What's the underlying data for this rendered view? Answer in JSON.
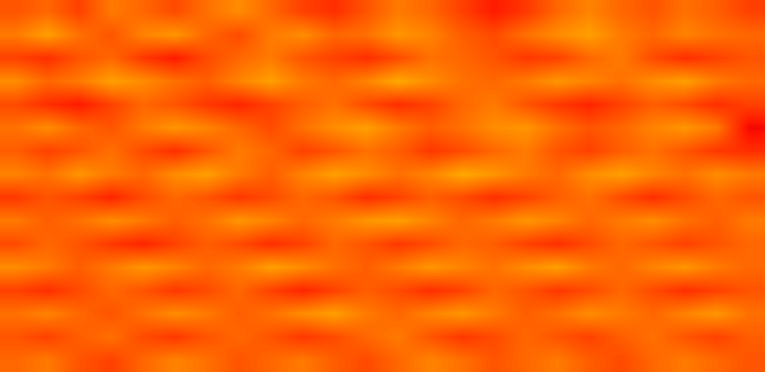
{
  "chart_data": {
    "type": "heatmap",
    "color": "jet",
    "tick_labels": false,
    "cell_range": [
      0,
      1
    ],
    "cells": [
      [
        0.82,
        0.8,
        0.84,
        0.78,
        0.8,
        0.83,
        0.79,
        0.76,
        0.8,
        0.84,
        0.86,
        0.82,
        0.78,
        0.8,
        0.84,
        0.88,
        0.85,
        0.8,
        0.77,
        0.8,
        0.82,
        0.79,
        0.81,
        0.84
      ],
      [
        0.78,
        0.74,
        0.79,
        0.82,
        0.77,
        0.75,
        0.8,
        0.83,
        0.78,
        0.76,
        0.8,
        0.79,
        0.75,
        0.77,
        0.81,
        0.83,
        0.79,
        0.76,
        0.74,
        0.78,
        0.8,
        0.77,
        0.79,
        0.8
      ],
      [
        0.84,
        0.86,
        0.82,
        0.8,
        0.85,
        0.88,
        0.83,
        0.8,
        0.78,
        0.82,
        0.84,
        0.86,
        0.83,
        0.79,
        0.8,
        0.82,
        0.85,
        0.84,
        0.8,
        0.78,
        0.83,
        0.86,
        0.84,
        0.82
      ],
      [
        0.76,
        0.8,
        0.78,
        0.74,
        0.76,
        0.79,
        0.81,
        0.77,
        0.74,
        0.78,
        0.8,
        0.77,
        0.73,
        0.76,
        0.79,
        0.8,
        0.78,
        0.75,
        0.77,
        0.79,
        0.76,
        0.74,
        0.78,
        0.8
      ],
      [
        0.83,
        0.86,
        0.88,
        0.84,
        0.8,
        0.82,
        0.85,
        0.87,
        0.84,
        0.81,
        0.79,
        0.83,
        0.86,
        0.84,
        0.8,
        0.78,
        0.82,
        0.85,
        0.87,
        0.84,
        0.81,
        0.83,
        0.86,
        0.84
      ],
      [
        0.79,
        0.76,
        0.8,
        0.82,
        0.78,
        0.75,
        0.77,
        0.8,
        0.83,
        0.79,
        0.76,
        0.74,
        0.78,
        0.81,
        0.79,
        0.76,
        0.75,
        0.79,
        0.82,
        0.8,
        0.77,
        0.75,
        0.78,
        0.9
      ],
      [
        0.81,
        0.84,
        0.82,
        0.79,
        0.83,
        0.86,
        0.82,
        0.78,
        0.8,
        0.84,
        0.82,
        0.79,
        0.81,
        0.85,
        0.83,
        0.8,
        0.78,
        0.82,
        0.84,
        0.81,
        0.79,
        0.82,
        0.85,
        0.86
      ],
      [
        0.77,
        0.79,
        0.75,
        0.78,
        0.8,
        0.76,
        0.74,
        0.78,
        0.81,
        0.77,
        0.74,
        0.76,
        0.79,
        0.77,
        0.73,
        0.75,
        0.78,
        0.8,
        0.76,
        0.74,
        0.77,
        0.79,
        0.76,
        0.78
      ],
      [
        0.85,
        0.82,
        0.84,
        0.87,
        0.83,
        0.8,
        0.82,
        0.85,
        0.83,
        0.8,
        0.82,
        0.86,
        0.84,
        0.81,
        0.83,
        0.86,
        0.84,
        0.81,
        0.79,
        0.83,
        0.86,
        0.83,
        0.8,
        0.82
      ],
      [
        0.78,
        0.81,
        0.79,
        0.76,
        0.78,
        0.81,
        0.79,
        0.75,
        0.77,
        0.8,
        0.78,
        0.75,
        0.74,
        0.77,
        0.8,
        0.78,
        0.75,
        0.77,
        0.8,
        0.78,
        0.76,
        0.79,
        0.81,
        0.78
      ],
      [
        0.83,
        0.8,
        0.82,
        0.85,
        0.87,
        0.84,
        0.81,
        0.83,
        0.86,
        0.84,
        0.8,
        0.82,
        0.85,
        0.83,
        0.8,
        0.81,
        0.84,
        0.86,
        0.83,
        0.8,
        0.82,
        0.84,
        0.82,
        0.8
      ],
      [
        0.76,
        0.78,
        0.81,
        0.78,
        0.75,
        0.77,
        0.8,
        0.78,
        0.74,
        0.76,
        0.79,
        0.81,
        0.78,
        0.75,
        0.77,
        0.79,
        0.76,
        0.74,
        0.78,
        0.8,
        0.77,
        0.75,
        0.78,
        0.8
      ],
      [
        0.84,
        0.86,
        0.83,
        0.8,
        0.82,
        0.85,
        0.83,
        0.8,
        0.84,
        0.87,
        0.84,
        0.81,
        0.83,
        0.86,
        0.84,
        0.8,
        0.82,
        0.85,
        0.83,
        0.8,
        0.83,
        0.86,
        0.84,
        0.82
      ],
      [
        0.79,
        0.77,
        0.8,
        0.82,
        0.79,
        0.76,
        0.78,
        0.81,
        0.79,
        0.76,
        0.74,
        0.78,
        0.8,
        0.77,
        0.75,
        0.78,
        0.81,
        0.79,
        0.76,
        0.78,
        0.8,
        0.77,
        0.75,
        0.79
      ],
      [
        0.82,
        0.84,
        0.81,
        0.79,
        0.83,
        0.85,
        0.82,
        0.8,
        0.82,
        0.85,
        0.83,
        0.8,
        0.78,
        0.82,
        0.85,
        0.83,
        0.8,
        0.82,
        0.84,
        0.81,
        0.79,
        0.82,
        0.84,
        0.81
      ],
      [
        0.8,
        0.78,
        0.82,
        0.84,
        0.8,
        0.77,
        0.79,
        0.82,
        0.8,
        0.78,
        0.81,
        0.83,
        0.8,
        0.77,
        0.79,
        0.82,
        0.8,
        0.78,
        0.81,
        0.83,
        0.8,
        0.78,
        0.8,
        0.82
      ]
    ]
  }
}
